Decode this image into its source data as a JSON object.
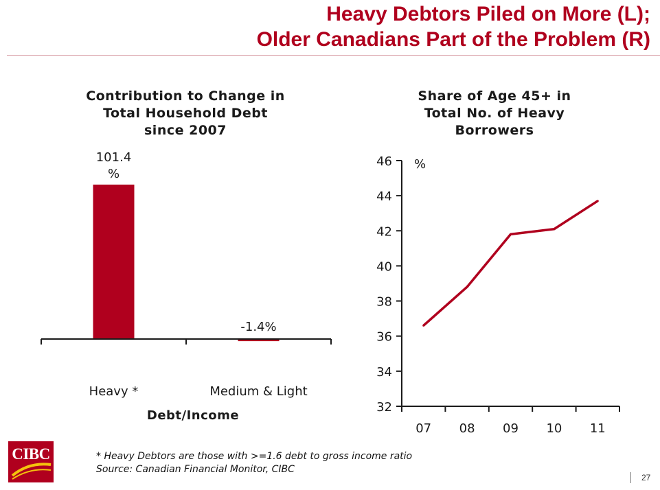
{
  "title": {
    "line1": "Heavy Debtors Piled on More (L);",
    "line2": "Older Canadians Part of the Problem (R)"
  },
  "chart_data": [
    {
      "type": "bar",
      "title_lines": [
        "Contribution to Change in",
        "Total Household Debt",
        "since 2007"
      ],
      "categories": [
        "Heavy *",
        "Medium & Light"
      ],
      "values": [
        101.4,
        -1.4
      ],
      "data_labels": [
        [
          "101.4",
          "%"
        ],
        [
          "-1.4%"
        ]
      ],
      "xlabel": "Debt/Income",
      "ylim": [
        -1.4,
        101.4
      ],
      "grid": false,
      "colors": {
        "bar": "#b0001e"
      }
    },
    {
      "type": "line",
      "title_lines": [
        "Share of Age 45+ in",
        "Total No. of Heavy",
        "Borrowers"
      ],
      "x": [
        "07",
        "08",
        "09",
        "10",
        "11"
      ],
      "values": [
        36.6,
        38.8,
        41.8,
        42.1,
        43.7
      ],
      "yunit": "%",
      "ylim": [
        32,
        46
      ],
      "yticks": [
        32,
        34,
        36,
        38,
        40,
        42,
        44,
        46
      ],
      "grid": false,
      "colors": {
        "line": "#b0001e"
      }
    }
  ],
  "footnote": {
    "line1": "* Heavy Debtors are those with >=1.6 debt to gross income ratio",
    "line2": "Source: Canadian Financial Monitor, CIBC"
  },
  "logo": {
    "text": "CIBC"
  },
  "page_number": "27"
}
